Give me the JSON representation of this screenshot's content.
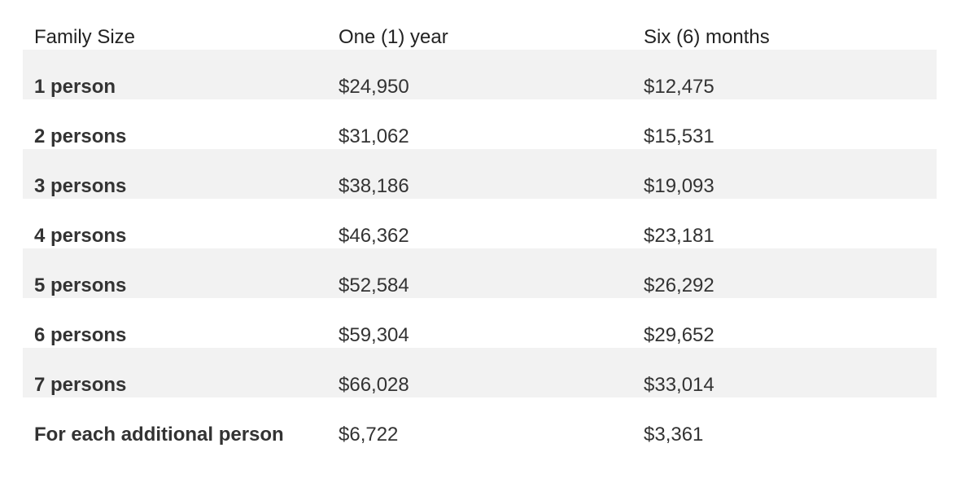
{
  "table": {
    "headers": [
      "Family Size",
      "One (1) year",
      "Six (6) months"
    ],
    "rows": [
      [
        "1 person",
        "$24,950",
        "$12,475"
      ],
      [
        "2 persons",
        "$31,062",
        "$15,531"
      ],
      [
        "3 persons",
        "$38,186",
        "$19,093"
      ],
      [
        "4 persons",
        "$46,362",
        "$23,181"
      ],
      [
        "5 persons",
        "$52,584",
        "$26,292"
      ],
      [
        "6 persons",
        "$59,304",
        "$29,652"
      ],
      [
        "7 persons",
        "$66,028",
        "$33,014"
      ],
      [
        "For each additional person",
        "$6,722",
        "$3,361"
      ]
    ]
  }
}
